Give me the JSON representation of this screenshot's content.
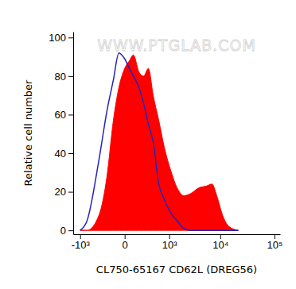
{
  "chart_data": {
    "type": "area",
    "x_label": "CL750-65167 CD62L (DREG56)",
    "y_label": "Relative cell number",
    "annotations": [
      "WWW.PTGLAB.COM"
    ],
    "log": "x",
    "x": [
      -1000,
      -700,
      -350,
      -200,
      -110,
      -50,
      0,
      40,
      80,
      150,
      220,
      310,
      420,
      580,
      780,
      1080,
      1470,
      2000,
      2700,
      3900,
      5500,
      7000,
      8600,
      11000,
      14500,
      21600
    ],
    "series": [
      {
        "type": "area",
        "color": "#ff0000",
        "values": [
          0,
          0,
          8,
          28,
          57,
          74,
          84,
          88,
          91,
          82,
          80,
          84,
          70,
          57,
          43,
          31,
          22,
          18,
          19,
          22,
          23,
          24,
          18,
          8,
          2,
          0
        ]
      },
      {
        "type": "line",
        "color": "#2424b8",
        "values": [
          0,
          5,
          37,
          62,
          78,
          92,
          89,
          84,
          80,
          74,
          66,
          55,
          46,
          24,
          16,
          9,
          5,
          1,
          0,
          0,
          0,
          0,
          0,
          0,
          0,
          0
        ]
      }
    ],
    "xlim": [
      -1400,
      127000
    ],
    "xticks": [
      {
        "value": -1000,
        "label": "-10³"
      },
      0,
      {
        "value": 1000,
        "label": "10³"
      },
      {
        "value": 10000,
        "label": "10⁴"
      },
      {
        "value": 100000,
        "label": "10⁵"
      }
    ],
    "ylim": [
      -2,
      103
    ],
    "yticks": [
      0,
      20,
      40,
      60,
      80,
      100
    ],
    "grid": false
  }
}
